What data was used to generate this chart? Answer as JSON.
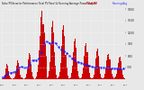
{
  "title": "Solar PV/Inverter Performance Total PV Panel & Running Average Power Output",
  "bar_color": "#cc0000",
  "avg_color": "#1a1aff",
  "bg_color": "#e8e8e8",
  "plot_bg": "#e8e8e8",
  "grid_color": "#ffffff",
  "ylim": [
    0,
    1800
  ],
  "ytick_vals": [
    300,
    600,
    900,
    1200,
    1500,
    1800
  ],
  "ytick_labels": [
    "300",
    "600",
    "900",
    "1200",
    "1500",
    "1800"
  ],
  "bar_heights": [
    10,
    20,
    50,
    120,
    280,
    400,
    350,
    200,
    100,
    40,
    15,
    5,
    15,
    30,
    80,
    180,
    350,
    480,
    420,
    250,
    120,
    55,
    20,
    8,
    20,
    45,
    130,
    260,
    500,
    680,
    620,
    380,
    180,
    80,
    25,
    10,
    30,
    60,
    180,
    380,
    750,
    1100,
    1600,
    1750,
    1400,
    1200,
    900,
    600,
    40,
    80,
    200,
    450,
    900,
    1350,
    1500,
    1200,
    700,
    350,
    120,
    30,
    35,
    70,
    190,
    420,
    850,
    1280,
    1380,
    1100,
    620,
    300,
    100,
    25,
    25,
    55,
    160,
    350,
    700,
    980,
    1050,
    800,
    450,
    200,
    70,
    18,
    20,
    45,
    140,
    300,
    600,
    850,
    920,
    700,
    380,
    160,
    55,
    15,
    18,
    38,
    120,
    260,
    520,
    720,
    780,
    600,
    320,
    140,
    48,
    12,
    30,
    55,
    150,
    280,
    480,
    620,
    650,
    500,
    280,
    130,
    60,
    25,
    35,
    60,
    140,
    260,
    420,
    550,
    580,
    460,
    260,
    120,
    55,
    22
  ],
  "avg_values": [
    50,
    55,
    65,
    80,
    100,
    120,
    140,
    155,
    165,
    170,
    172,
    170,
    175,
    182,
    195,
    215,
    240,
    270,
    295,
    310,
    315,
    315,
    310,
    300,
    295,
    292,
    295,
    305,
    325,
    360,
    400,
    440,
    470,
    490,
    495,
    490,
    488,
    492,
    500,
    520,
    560,
    620,
    700,
    790,
    870,
    930,
    960,
    970,
    960,
    945,
    935,
    930,
    930,
    940,
    955,
    960,
    950,
    930,
    900,
    865,
    830,
    800,
    775,
    755,
    740,
    730,
    720,
    710,
    695,
    678,
    658,
    635,
    610,
    585,
    560,
    538,
    518,
    500,
    485,
    472,
    460,
    450,
    440,
    430,
    420,
    410,
    400,
    390,
    382,
    375,
    368,
    362,
    355,
    348,
    340,
    332,
    325,
    318,
    312,
    308,
    305,
    303,
    302,
    301,
    300,
    299,
    298,
    297,
    296,
    295,
    294,
    293,
    292,
    291,
    290,
    289,
    288,
    287,
    286,
    285,
    284,
    283,
    282,
    281,
    280,
    279,
    278,
    277,
    276,
    275,
    274,
    273
  ],
  "x_labels": [
    "1/03",
    "1/04",
    "1/05",
    "1/06",
    "1/07",
    "1/08",
    "1/09",
    "1/10",
    "1/11",
    "1/12",
    "1/13"
  ],
  "num_bars": 132
}
